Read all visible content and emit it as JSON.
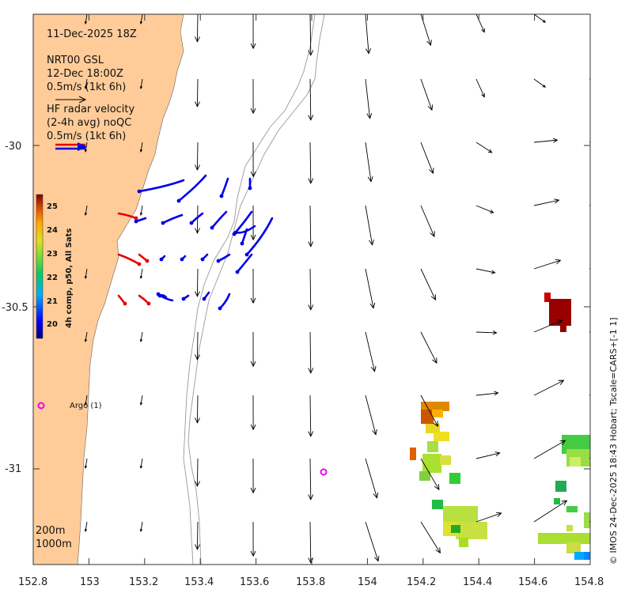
{
  "map": {
    "date_title": "11-Dec-2025 18Z",
    "model_label": "NRT00 GSL",
    "model_time": "12-Dec 18:00Z",
    "model_scale": "0.5m/s (1kt 6h)",
    "radar_line1": "HF radar velocity",
    "radar_line2": "(2-4h avg) noQC",
    "radar_scale": "0.5m/s (1kt 6h)",
    "argo_label": "Argo (1)",
    "contour_200": "200m",
    "contour_1000": "1000m",
    "credit": "© IMOS 24-Dec-2025 18:43 Hobart; Tscale=CARS+[-1 1]",
    "x_ticks": [
      "152.8",
      "153",
      "153.2",
      "153.4",
      "153.6",
      "153.8",
      "154",
      "154.2",
      "154.4",
      "154.6",
      "154.8"
    ],
    "y_ticks": [
      "-30",
      "-30.5",
      "-31"
    ],
    "lon_range": [
      152.8,
      154.8
    ],
    "lat_range": [
      -29.6,
      -31.3
    ],
    "land_color": "#ffcc99",
    "model_arrow_color": "#000000",
    "radar_colors": [
      "#0000e6",
      "#e60000"
    ]
  },
  "colorbar": {
    "label": "4h comp, p50, All Sats",
    "ticks": [
      "25",
      "24",
      "23",
      "22",
      "21",
      "20"
    ],
    "range": [
      19.5,
      25.5
    ]
  }
}
